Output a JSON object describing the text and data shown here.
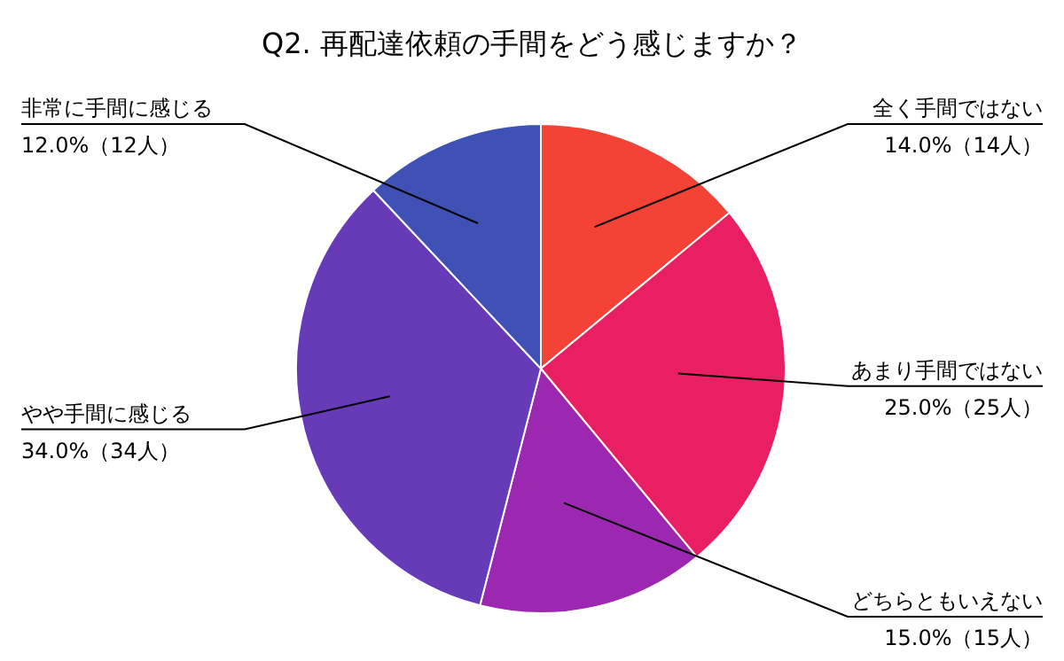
{
  "chart_data": {
    "type": "pie",
    "title": "Q2. 再配達依頼の手間をどう感じますか？",
    "categories": [
      "全く手間ではない",
      "あまり手間ではない",
      "どちらともいえない",
      "やや手間に感じる",
      "非常に手間に感じる"
    ],
    "values": [
      14,
      25,
      15,
      34,
      12
    ],
    "value_labels": [
      "14.0%（14人）",
      "25.0%（25人）",
      "15.0%（15人）",
      "34.0%（34人）",
      "12.0%（12人）"
    ],
    "colors": [
      "#f44336",
      "#e91e63",
      "#9c27b0",
      "#673ab7",
      "#3f51b5"
    ],
    "legend": false
  }
}
